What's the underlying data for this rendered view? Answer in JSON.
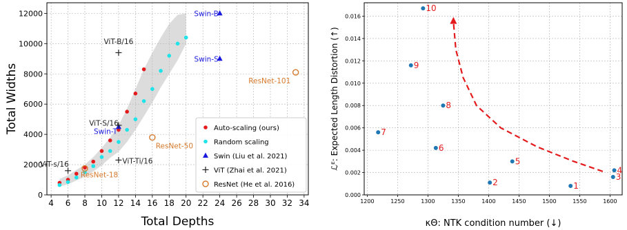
{
  "chart_data": [
    {
      "type": "scatter",
      "xlabel": "Total Depths",
      "ylabel": "Total Widths",
      "xlim": [
        3.5,
        34.5
      ],
      "ylim": [
        0,
        12700
      ],
      "xticks": [
        4,
        6,
        8,
        10,
        12,
        14,
        16,
        18,
        20,
        22,
        24,
        26,
        28,
        30,
        32,
        34
      ],
      "yticks": [
        0,
        2000,
        4000,
        6000,
        8000,
        10000,
        12000
      ],
      "grid": true,
      "legend_position": "lower-right",
      "legend": [
        {
          "key": "auto",
          "label": "Auto-scaling (ours)",
          "color": "#e41a1c",
          "marker": "dot"
        },
        {
          "key": "random",
          "label": "Random scaling",
          "color": "#1ee3e8",
          "marker": "dot"
        },
        {
          "key": "swin",
          "label": "Swin (Liu et al. 2021)",
          "color": "#1a1adf",
          "marker": "triangle"
        },
        {
          "key": "vit",
          "label": "ViT (Zhai et al. 2021)",
          "color": "#222222",
          "marker": "plus"
        },
        {
          "key": "resnet",
          "label": "ResNet (He et al. 2016)",
          "color": "#d67a2d",
          "marker": "circle"
        }
      ],
      "band": {
        "x": [
          5,
          6,
          7,
          8,
          9,
          10,
          11,
          12,
          13,
          14,
          15,
          16,
          17,
          18,
          19,
          20
        ],
        "lower": [
          550,
          700,
          950,
          1200,
          1550,
          1950,
          2450,
          2850,
          3500,
          4300,
          5200,
          6100,
          7100,
          8000,
          8900,
          10000
        ],
        "upper": [
          1050,
          1300,
          1650,
          2000,
          2500,
          3100,
          3800,
          4600,
          5700,
          7000,
          8300,
          9400,
          10400,
          11300,
          11900,
          12000
        ]
      },
      "series": [
        {
          "name": "Auto-scaling (ours)",
          "key": "auto",
          "points": [
            [
              5,
              800
            ],
            [
              6,
              1000
            ],
            [
              7,
              1400
            ],
            [
              8,
              1800
            ],
            [
              9,
              2200
            ],
            [
              10,
              2900
            ],
            [
              11,
              3600
            ],
            [
              12,
              4300
            ],
            [
              13,
              5500
            ],
            [
              14,
              6700
            ],
            [
              15,
              8300
            ]
          ]
        },
        {
          "name": "Random scaling",
          "key": "random",
          "points": [
            [
              5,
              650
            ],
            [
              6,
              850
            ],
            [
              7,
              1150
            ],
            [
              8,
              1500
            ],
            [
              9,
              1900
            ],
            [
              10,
              2500
            ],
            [
              11,
              2900
            ],
            [
              12,
              3500
            ],
            [
              13,
              4300
            ],
            [
              14,
              5000
            ],
            [
              15,
              6200
            ],
            [
              16,
              7000
            ],
            [
              17,
              8200
            ],
            [
              18,
              9200
            ],
            [
              19,
              10000
            ],
            [
              20,
              10400
            ]
          ]
        },
        {
          "name": "Swin (Liu et al. 2021)",
          "key": "swin",
          "points": [
            [
              12,
              4500
            ],
            [
              24,
              9000
            ],
            [
              24,
              12000
            ]
          ]
        },
        {
          "name": "ViT (Zhai et al. 2021)",
          "key": "vit",
          "points": [
            [
              6,
              1600
            ],
            [
              12,
              2300
            ],
            [
              12,
              4600
            ],
            [
              12,
              9400
            ]
          ]
        },
        {
          "name": "ResNet (He et al. 2016)",
          "key": "resnet",
          "points": [
            [
              8,
              1750
            ],
            [
              16,
              3800
            ],
            [
              33,
              8100
            ]
          ]
        }
      ],
      "annotations": [
        {
          "text": "Swin-B",
          "x": 23.85,
          "y": 12000,
          "color": "#1a1adf",
          "anchor": "end"
        },
        {
          "text": "Swin-S",
          "x": 23.85,
          "y": 9000,
          "color": "#1a1adf",
          "anchor": "end"
        },
        {
          "text": "Swin-T",
          "x": 11.85,
          "y": 4200,
          "color": "#1a1adf",
          "anchor": "end"
        },
        {
          "text": "ViT-B/16",
          "x": 12.0,
          "y": 10150,
          "color": "#222222",
          "anchor": "middle"
        },
        {
          "text": "ViT-S/16",
          "x": 12.0,
          "y": 4750,
          "color": "#222222",
          "anchor": "end"
        },
        {
          "text": "ViT-Ti/16",
          "x": 12.45,
          "y": 2250,
          "color": "#222222",
          "anchor": "start"
        },
        {
          "text": "ViT-s/16",
          "x": 6.1,
          "y": 2050,
          "color": "#222222",
          "anchor": "end"
        },
        {
          "text": "ResNet-18",
          "x": 7.5,
          "y": 1350,
          "color": "#d67a2d",
          "anchor": "start"
        },
        {
          "text": "ResNet-50",
          "x": 16.4,
          "y": 3250,
          "color": "#d67a2d",
          "anchor": "start"
        },
        {
          "text": "ResNet-101",
          "x": 32.4,
          "y": 7550,
          "color": "#d67a2d",
          "anchor": "end"
        }
      ]
    },
    {
      "type": "scatter",
      "xlabel": "κΘ: NTK condition number (↓)",
      "ylabel": "ℒᴱ: Expected Length Distortion (↑)",
      "xlim": [
        1195,
        1620
      ],
      "ylim": [
        0,
        0.0172
      ],
      "xticks": [
        1200,
        1250,
        1300,
        1350,
        1400,
        1450,
        1500,
        1550,
        1600
      ],
      "yticks": [
        0.0,
        0.002,
        0.004,
        0.006,
        0.008,
        0.01,
        0.012,
        0.014,
        0.016
      ],
      "grid": true,
      "point_color": "#1f77b4",
      "label_color": "#e41a1c",
      "points": [
        {
          "label": "1",
          "x": 1535,
          "y": 0.0008
        },
        {
          "label": "2",
          "x": 1402,
          "y": 0.0011
        },
        {
          "label": "3",
          "x": 1605,
          "y": 0.0016
        },
        {
          "label": "4",
          "x": 1607,
          "y": 0.0022
        },
        {
          "label": "5",
          "x": 1439,
          "y": 0.003
        },
        {
          "label": "6",
          "x": 1313,
          "y": 0.0042
        },
        {
          "label": "7",
          "x": 1218,
          "y": 0.0056
        },
        {
          "label": "8",
          "x": 1325,
          "y": 0.008
        },
        {
          "label": "9",
          "x": 1272,
          "y": 0.0116
        },
        {
          "label": "10",
          "x": 1292,
          "y": 0.0167
        }
      ],
      "trend_arrow": {
        "color": "#e41a1c",
        "style": "dashed",
        "points": [
          [
            1588,
            0.0021
          ],
          [
            1540,
            0.003
          ],
          [
            1480,
            0.0043
          ],
          [
            1420,
            0.006
          ],
          [
            1380,
            0.008
          ],
          [
            1358,
            0.0105
          ],
          [
            1346,
            0.013
          ],
          [
            1342,
            0.0155
          ]
        ]
      }
    }
  ]
}
